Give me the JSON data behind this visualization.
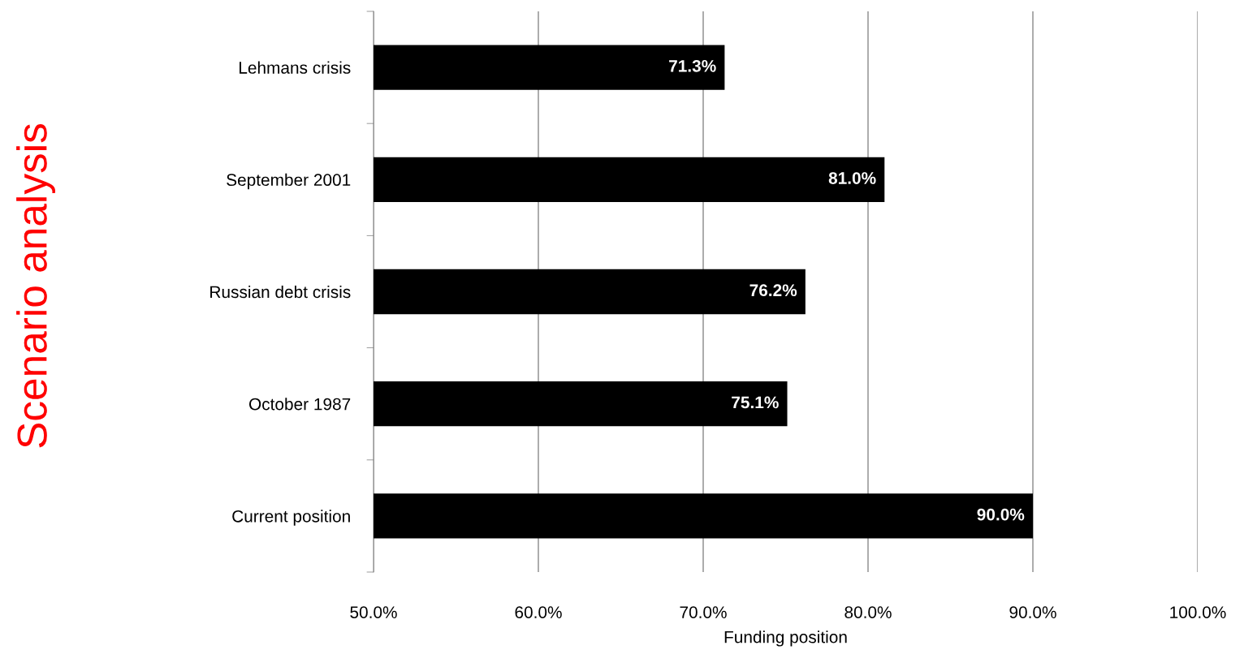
{
  "chart_data": {
    "type": "bar",
    "orientation": "horizontal",
    "categories": [
      "Lehmans crisis",
      "September 2001",
      "Russian debt crisis",
      "October 1987",
      "Current position"
    ],
    "values": [
      71.3,
      81.0,
      76.2,
      75.1,
      90.0
    ],
    "value_labels": [
      "71.3%",
      "81.0%",
      "76.2%",
      "75.1%",
      "90.0%"
    ],
    "color": "#000000",
    "xlim": [
      50,
      100
    ],
    "xticks": [
      {
        "value": 50,
        "label": "50.0%"
      },
      {
        "value": 60,
        "label": "60.0%"
      },
      {
        "value": 70,
        "label": "70.0%"
      },
      {
        "value": 80,
        "label": "80.0%"
      },
      {
        "value": 90,
        "label": "90.0%"
      },
      {
        "value": 100,
        "label": "100.0%"
      }
    ],
    "xlabel": "Funding position",
    "ylabel": "Scenario analysis",
    "grid": "x"
  }
}
